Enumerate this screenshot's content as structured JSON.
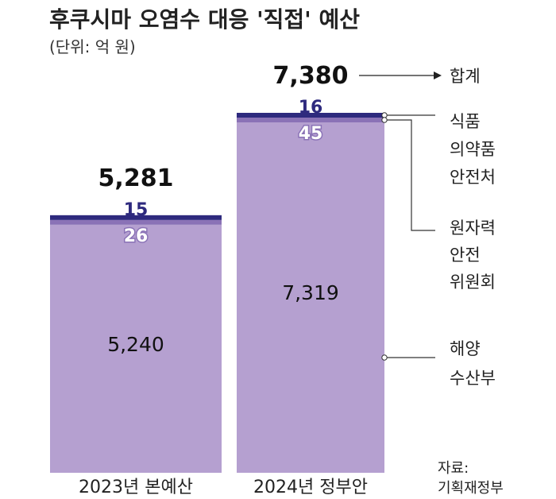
{
  "header": {
    "title": "후쿠시마 오염수 대응 '직접' 예산",
    "subtitle": "(단위: 억 원)"
  },
  "legend": {
    "total": "합계",
    "mfds": [
      "식품",
      "의약품",
      "안전처"
    ],
    "nssc": [
      "원자력",
      "안전",
      "위원회"
    ],
    "mof": [
      "해양",
      "수산부"
    ]
  },
  "source": [
    "자료:",
    "기획재정부"
  ],
  "colors": {
    "mfds": "#2e2a7e",
    "nssc": "#8a72b6",
    "mof": "#b5a0d0",
    "mfds_text": "#2e2a7e",
    "nssc_text": "#ffffff"
  },
  "chart_data": {
    "type": "bar",
    "stacked": true,
    "categories": [
      "2023년 본예산",
      "2024년 정부안"
    ],
    "series": [
      {
        "name": "해양수산부",
        "values": [
          5240,
          7319
        ]
      },
      {
        "name": "원자력안전위원회",
        "values": [
          26,
          45
        ]
      },
      {
        "name": "식품의약품안전처",
        "values": [
          15,
          16
        ]
      }
    ],
    "totals": [
      5281,
      7380
    ],
    "value_labels": {
      "mof": [
        "5,240",
        "7,319"
      ],
      "nssc": [
        "26",
        "45"
      ],
      "mfds": [
        "15",
        "16"
      ],
      "total": [
        "5,281",
        "7,380"
      ]
    },
    "title": "후쿠시마 오염수 대응 '직접' 예산",
    "ylabel": "",
    "xlabel": "",
    "unit": "억 원",
    "ylim": [
      0,
      7380
    ]
  }
}
